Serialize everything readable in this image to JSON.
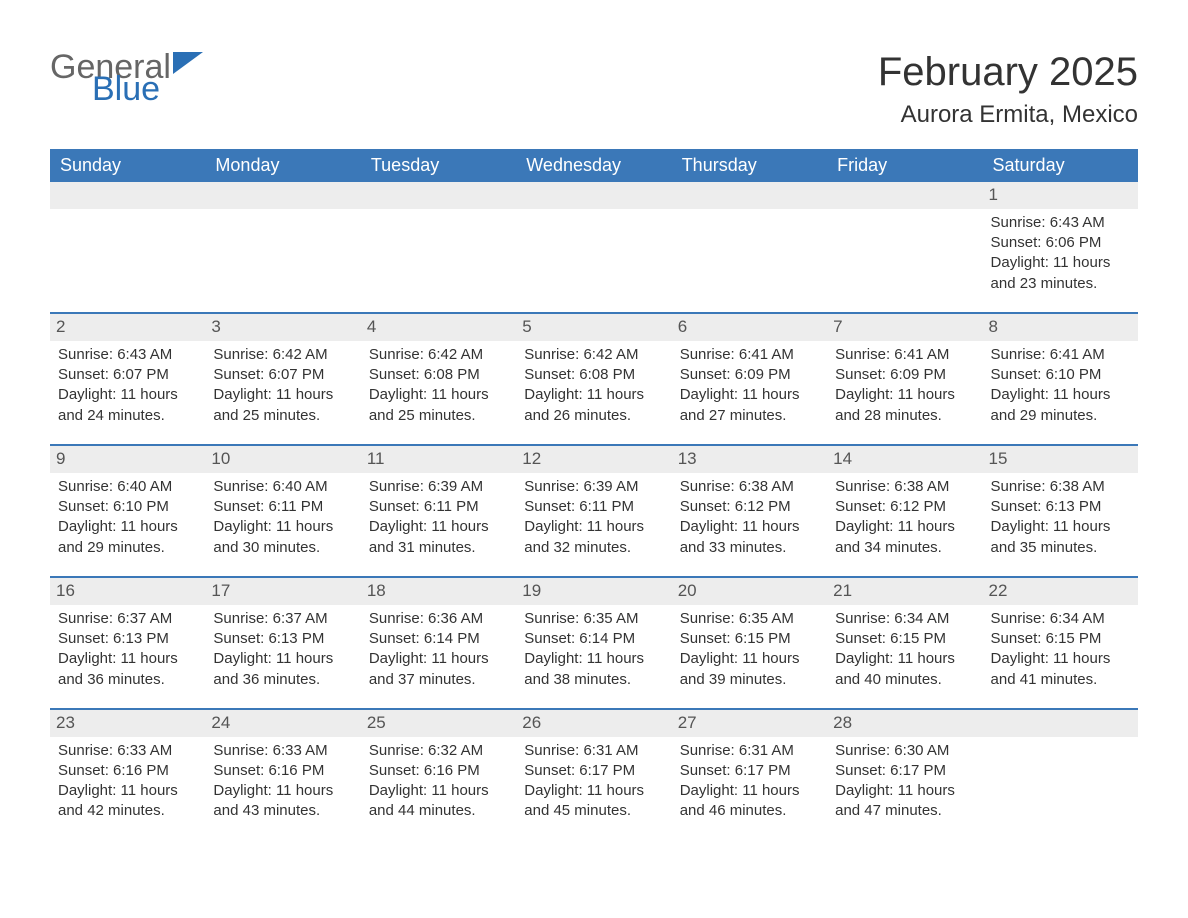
{
  "logo": {
    "text1": "General",
    "text2": "Blue"
  },
  "title": "February 2025",
  "subtitle": "Aurora Ermita, Mexico",
  "colors": {
    "header_bg": "#3b78b8",
    "header_text": "#ffffff",
    "daynum_bg": "#ededed",
    "row_divider": "#3b78b8",
    "logo_color": "#2a6fb5",
    "text_color": "#333333"
  },
  "weekdays": [
    "Sunday",
    "Monday",
    "Tuesday",
    "Wednesday",
    "Thursday",
    "Friday",
    "Saturday"
  ],
  "labels": {
    "sunrise": "Sunrise:",
    "sunset": "Sunset:",
    "daylight": "Daylight:"
  },
  "weeks": [
    [
      null,
      null,
      null,
      null,
      null,
      null,
      {
        "day": "1",
        "sunrise": "6:43 AM",
        "sunset": "6:06 PM",
        "daylight": "11 hours and 23 minutes."
      }
    ],
    [
      {
        "day": "2",
        "sunrise": "6:43 AM",
        "sunset": "6:07 PM",
        "daylight": "11 hours and 24 minutes."
      },
      {
        "day": "3",
        "sunrise": "6:42 AM",
        "sunset": "6:07 PM",
        "daylight": "11 hours and 25 minutes."
      },
      {
        "day": "4",
        "sunrise": "6:42 AM",
        "sunset": "6:08 PM",
        "daylight": "11 hours and 25 minutes."
      },
      {
        "day": "5",
        "sunrise": "6:42 AM",
        "sunset": "6:08 PM",
        "daylight": "11 hours and 26 minutes."
      },
      {
        "day": "6",
        "sunrise": "6:41 AM",
        "sunset": "6:09 PM",
        "daylight": "11 hours and 27 minutes."
      },
      {
        "day": "7",
        "sunrise": "6:41 AM",
        "sunset": "6:09 PM",
        "daylight": "11 hours and 28 minutes."
      },
      {
        "day": "8",
        "sunrise": "6:41 AM",
        "sunset": "6:10 PM",
        "daylight": "11 hours and 29 minutes."
      }
    ],
    [
      {
        "day": "9",
        "sunrise": "6:40 AM",
        "sunset": "6:10 PM",
        "daylight": "11 hours and 29 minutes."
      },
      {
        "day": "10",
        "sunrise": "6:40 AM",
        "sunset": "6:11 PM",
        "daylight": "11 hours and 30 minutes."
      },
      {
        "day": "11",
        "sunrise": "6:39 AM",
        "sunset": "6:11 PM",
        "daylight": "11 hours and 31 minutes."
      },
      {
        "day": "12",
        "sunrise": "6:39 AM",
        "sunset": "6:11 PM",
        "daylight": "11 hours and 32 minutes."
      },
      {
        "day": "13",
        "sunrise": "6:38 AM",
        "sunset": "6:12 PM",
        "daylight": "11 hours and 33 minutes."
      },
      {
        "day": "14",
        "sunrise": "6:38 AM",
        "sunset": "6:12 PM",
        "daylight": "11 hours and 34 minutes."
      },
      {
        "day": "15",
        "sunrise": "6:38 AM",
        "sunset": "6:13 PM",
        "daylight": "11 hours and 35 minutes."
      }
    ],
    [
      {
        "day": "16",
        "sunrise": "6:37 AM",
        "sunset": "6:13 PM",
        "daylight": "11 hours and 36 minutes."
      },
      {
        "day": "17",
        "sunrise": "6:37 AM",
        "sunset": "6:13 PM",
        "daylight": "11 hours and 36 minutes."
      },
      {
        "day": "18",
        "sunrise": "6:36 AM",
        "sunset": "6:14 PM",
        "daylight": "11 hours and 37 minutes."
      },
      {
        "day": "19",
        "sunrise": "6:35 AM",
        "sunset": "6:14 PM",
        "daylight": "11 hours and 38 minutes."
      },
      {
        "day": "20",
        "sunrise": "6:35 AM",
        "sunset": "6:15 PM",
        "daylight": "11 hours and 39 minutes."
      },
      {
        "day": "21",
        "sunrise": "6:34 AM",
        "sunset": "6:15 PM",
        "daylight": "11 hours and 40 minutes."
      },
      {
        "day": "22",
        "sunrise": "6:34 AM",
        "sunset": "6:15 PM",
        "daylight": "11 hours and 41 minutes."
      }
    ],
    [
      {
        "day": "23",
        "sunrise": "6:33 AM",
        "sunset": "6:16 PM",
        "daylight": "11 hours and 42 minutes."
      },
      {
        "day": "24",
        "sunrise": "6:33 AM",
        "sunset": "6:16 PM",
        "daylight": "11 hours and 43 minutes."
      },
      {
        "day": "25",
        "sunrise": "6:32 AM",
        "sunset": "6:16 PM",
        "daylight": "11 hours and 44 minutes."
      },
      {
        "day": "26",
        "sunrise": "6:31 AM",
        "sunset": "6:17 PM",
        "daylight": "11 hours and 45 minutes."
      },
      {
        "day": "27",
        "sunrise": "6:31 AM",
        "sunset": "6:17 PM",
        "daylight": "11 hours and 46 minutes."
      },
      {
        "day": "28",
        "sunrise": "6:30 AM",
        "sunset": "6:17 PM",
        "daylight": "11 hours and 47 minutes."
      },
      null
    ]
  ]
}
